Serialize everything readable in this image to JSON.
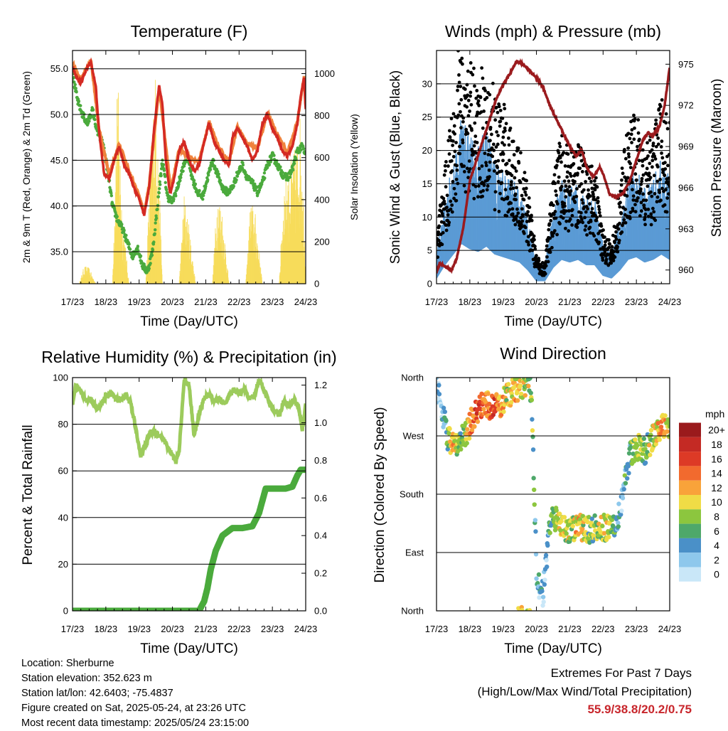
{
  "colors": {
    "temp_red": "#d42a23",
    "temp_orange": "#f0823c",
    "dewpoint_green": "#4aaa3c",
    "insolation_yellow": "#f7dc5a",
    "wind_blue": "#5b9bd5",
    "gust_black": "#000000",
    "pressure_maroon": "#9b1b1e",
    "rh_lightgreen": "#9ccb5c",
    "precip_green": "#4aaa3c",
    "extremes_red": "#c8262c"
  },
  "x_ticks": [
    "17/23",
    "18/23",
    "19/23",
    "20/23",
    "21/23",
    "22/23",
    "23/23",
    "24/23"
  ],
  "xlabel": "Time (Day/UTC)",
  "info": {
    "location": "Location: Sherburne",
    "elevation": "Station elevation: 352.623 m",
    "latlon": "Station lat/lon: 42.6403; -75.4837",
    "created": "Figure created on Sat, 2025-05-24, at 23:26 UTC",
    "recent": "Most recent data timestamp: 2025/05/24 23:15:00"
  },
  "extremes": {
    "title": "Extremes For Past 7 Days",
    "subtitle": "(High/Low/Max Wind/Total Precipitation)",
    "values": "55.9/38.8/20.2/0.75"
  },
  "chart_data": [
    {
      "type": "line",
      "title": "Temperature (F)",
      "xlabel": "Time (Day/UTC)",
      "ylabel": "2m & 9m T (Red, Orange) & 2m Td (Green)",
      "ylabel_right": "Solar Insolation (Yellow)",
      "x_unit": "days since 17/23 UTC",
      "ylim": [
        31.5,
        57.0
      ],
      "ylim_right": [
        0,
        1110
      ],
      "y_ticks": [
        "35.0",
        "40.0",
        "45.0",
        "50.0",
        "55.0"
      ],
      "y_ticks_right": [
        "0",
        "200",
        "400",
        "600",
        "800",
        "1000"
      ],
      "grid": true,
      "series": [
        {
          "name": "2m T",
          "color": "#d42a23",
          "x": [
            0,
            0.12,
            0.25,
            0.4,
            0.55,
            0.7,
            0.8,
            0.95,
            1.1,
            1.25,
            1.4,
            1.55,
            1.7,
            1.85,
            2.0,
            2.15,
            2.3,
            2.45,
            2.6,
            2.7,
            2.8,
            2.9,
            2.95,
            3.05,
            3.2,
            3.35,
            3.5,
            3.65,
            3.8,
            3.95,
            4.1,
            4.25,
            4.4,
            4.55,
            4.7,
            4.8,
            4.95,
            5.1,
            5.25,
            5.4,
            5.55,
            5.7,
            5.85,
            6.0,
            6.15,
            6.3,
            6.45,
            6.6,
            6.75,
            6.85,
            6.95,
            7.0
          ],
          "y": [
            55.2,
            54.0,
            53.5,
            54.8,
            55.8,
            53.0,
            48.0,
            43.5,
            43.0,
            45.0,
            46.5,
            44.5,
            43.5,
            42.0,
            40.8,
            39.0,
            42.0,
            48.5,
            53.2,
            51.0,
            45.0,
            42.0,
            41.5,
            43.0,
            46.0,
            47.0,
            45.0,
            43.8,
            44.5,
            47.0,
            49.0,
            47.0,
            46.0,
            45.0,
            44.5,
            47.5,
            48.5,
            47.5,
            46.5,
            45.0,
            46.0,
            49.0,
            50.0,
            48.5,
            47.5,
            46.0,
            45.5,
            46.5,
            49.0,
            52.0,
            54.0,
            50.5
          ]
        },
        {
          "name": "9m T",
          "color": "#f0823c",
          "x": [
            0,
            0.25,
            0.55,
            0.8,
            1.1,
            1.4,
            1.7,
            2.0,
            2.15,
            2.3,
            2.6,
            2.95,
            3.2,
            3.5,
            3.8,
            4.1,
            4.4,
            4.7,
            4.95,
            5.25,
            5.55,
            5.85,
            6.15,
            6.45,
            6.75,
            6.95,
            7.0
          ],
          "y": [
            55.6,
            53.8,
            56.0,
            48.3,
            43.4,
            46.8,
            43.8,
            41.1,
            39.3,
            42.3,
            53.0,
            41.8,
            46.2,
            45.3,
            44.8,
            49.2,
            46.3,
            44.8,
            48.7,
            46.8,
            46.3,
            50.2,
            47.8,
            45.8,
            49.2,
            54.2,
            50.8
          ]
        },
        {
          "name": "2m Td",
          "color": "#4aaa3c",
          "x": [
            0,
            0.15,
            0.3,
            0.45,
            0.6,
            0.75,
            0.9,
            1.05,
            1.2,
            1.35,
            1.5,
            1.65,
            1.8,
            1.95,
            2.1,
            2.25,
            2.4,
            2.55,
            2.7,
            2.85,
            3.0,
            3.15,
            3.3,
            3.45,
            3.6,
            3.75,
            3.9,
            4.05,
            4.2,
            4.35,
            4.5,
            4.65,
            4.8,
            4.95,
            5.1,
            5.25,
            5.4,
            5.55,
            5.7,
            5.85,
            6.0,
            6.15,
            6.3,
            6.45,
            6.6,
            6.75,
            6.9,
            7.0
          ],
          "y": [
            54.5,
            51.5,
            50.0,
            49.0,
            50.5,
            48.0,
            47.0,
            44.0,
            40.0,
            38.5,
            37.5,
            36.0,
            34.5,
            35.5,
            33.5,
            32.8,
            35.0,
            40.0,
            45.0,
            41.0,
            40.5,
            42.0,
            44.0,
            45.5,
            43.0,
            41.5,
            41.0,
            43.0,
            45.0,
            43.5,
            42.0,
            41.5,
            42.0,
            43.5,
            44.5,
            43.0,
            42.5,
            41.5,
            42.5,
            44.5,
            45.5,
            44.5,
            43.5,
            43.0,
            44.0,
            46.0,
            46.5,
            45.5
          ]
        },
        {
          "name": "Solar Insolation",
          "color": "#f7dc5a",
          "x": [
            0,
            0.2,
            0.35,
            0.5,
            0.7,
            0.85,
            1.0,
            1.2,
            1.35,
            1.5,
            1.7,
            1.85,
            2.0,
            2.2,
            2.35,
            2.5,
            2.7,
            2.85,
            3.0,
            3.2,
            3.35,
            3.5,
            3.7,
            3.85,
            4.0,
            4.2,
            4.35,
            4.5,
            4.7,
            4.85,
            5.0,
            5.2,
            5.35,
            5.5,
            5.7,
            5.85,
            6.0,
            6.2,
            6.35,
            6.5,
            6.7,
            6.85,
            7.0
          ],
          "y": [
            0,
            0,
            80,
            70,
            0,
            0,
            0,
            0,
            950,
            300,
            0,
            0,
            0,
            0,
            600,
            950,
            0,
            0,
            0,
            0,
            400,
            250,
            0,
            0,
            0,
            0,
            420,
            320,
            0,
            0,
            0,
            0,
            380,
            300,
            0,
            0,
            0,
            0,
            450,
            520,
            600,
            750,
            100
          ]
        }
      ]
    },
    {
      "type": "scatter",
      "title": "Winds (mph) & Pressure (mb)",
      "xlabel": "Time (Day/UTC)",
      "ylabel": "Sonic Wind & Gust (Blue, Black)",
      "ylabel_right": "Station Pressure (Maroon)",
      "x_unit": "days since 17/23 UTC",
      "ylim": [
        0,
        35
      ],
      "ylim_right": [
        959,
        976
      ],
      "y_ticks": [
        "0",
        "5",
        "10",
        "15",
        "20",
        "25",
        "30"
      ],
      "y_ticks_right": [
        "960",
        "963",
        "966",
        "969",
        "972",
        "975"
      ],
      "grid": true,
      "series": [
        {
          "name": "Gust",
          "color": "#000000",
          "x": [
            0,
            0.25,
            0.5,
            0.75,
            1.0,
            1.25,
            1.5,
            1.75,
            2.0,
            2.25,
            2.5,
            2.75,
            3.0,
            3.25,
            3.5,
            3.75,
            4.0,
            4.25,
            4.5,
            4.75,
            5.0,
            5.25,
            5.5,
            5.75,
            6.0,
            6.25,
            6.5,
            6.75,
            7.0
          ],
          "y": [
            5,
            12,
            20,
            27,
            23,
            22,
            24,
            20,
            19,
            16,
            14,
            10,
            3,
            2,
            11,
            16,
            14,
            15,
            13,
            12,
            6,
            4,
            10,
            17,
            18,
            14,
            16,
            20,
            17
          ]
        },
        {
          "name": "Wind",
          "color": "#5b9bd5",
          "x": [
            0,
            0.25,
            0.5,
            0.75,
            1.0,
            1.25,
            1.5,
            1.75,
            2.0,
            2.25,
            2.5,
            2.75,
            3.0,
            3.25,
            3.5,
            3.75,
            4.0,
            4.25,
            4.5,
            4.75,
            5.0,
            5.25,
            5.5,
            5.75,
            6.0,
            6.25,
            6.5,
            6.75,
            7.0
          ],
          "y": [
            2,
            7,
            11,
            15,
            13,
            12,
            14,
            11,
            10,
            9,
            8,
            5,
            1,
            1,
            6,
            9,
            8,
            9,
            7,
            7,
            3,
            2,
            5,
            9,
            10,
            8,
            9,
            11,
            9
          ]
        },
        {
          "name": "Station Pressure",
          "color": "#9b1b1e",
          "x": [
            0,
            0.1,
            0.3,
            0.45,
            0.6,
            0.8,
            1.0,
            1.2,
            1.4,
            1.6,
            1.8,
            2.0,
            2.2,
            2.4,
            2.6,
            2.8,
            3.0,
            3.2,
            3.4,
            3.6,
            3.8,
            4.0,
            4.2,
            4.35,
            4.5,
            4.7,
            4.9,
            5.0,
            5.2,
            5.4,
            5.6,
            5.8,
            6.0,
            6.2,
            6.35,
            6.5,
            6.7,
            6.85,
            7.0
          ],
          "y": [
            959.8,
            960.5,
            960.2,
            960.0,
            960.8,
            963.0,
            966.5,
            968.0,
            969.5,
            971.0,
            972.5,
            973.5,
            974.3,
            975.2,
            975.0,
            974.5,
            974.0,
            973.3,
            972.0,
            971.0,
            970.0,
            969.0,
            968.3,
            968.8,
            967.5,
            966.8,
            967.5,
            967.0,
            965.5,
            965.3,
            965.6,
            966.5,
            968.0,
            969.5,
            970.0,
            969.8,
            970.5,
            972.0,
            974.8
          ]
        }
      ]
    },
    {
      "type": "line",
      "title": "Relative Humidity (%) & Precipitation (in)",
      "xlabel": "Time (Day/UTC)",
      "ylabel": "Percent & Total Rainfall",
      "x_unit": "days since 17/23 UTC",
      "ylim": [
        0,
        100
      ],
      "ylim_right": [
        0,
        1.24
      ],
      "y_ticks": [
        "0",
        "20",
        "40",
        "60",
        "80",
        "100"
      ],
      "y_ticks_right": [
        "0.0",
        "0.2",
        "0.4",
        "0.6",
        "0.8",
        "1.0",
        "1.2"
      ],
      "grid": true,
      "series": [
        {
          "name": "Relative Humidity",
          "color": "#9ccb5c",
          "x": [
            0,
            0.1,
            0.25,
            0.4,
            0.55,
            0.7,
            0.85,
            1.0,
            1.15,
            1.3,
            1.45,
            1.6,
            1.75,
            1.9,
            2.05,
            2.2,
            2.35,
            2.5,
            2.65,
            2.8,
            2.95,
            3.1,
            3.2,
            3.35,
            3.5,
            3.65,
            3.8,
            3.95,
            4.1,
            4.25,
            4.4,
            4.55,
            4.7,
            4.85,
            5.0,
            5.15,
            5.3,
            5.45,
            5.6,
            5.75,
            5.9,
            6.05,
            6.2,
            6.35,
            6.5,
            6.65,
            6.8,
            6.9,
            7.0
          ],
          "y": [
            89,
            97,
            94,
            90,
            91,
            87,
            88,
            92,
            93,
            91,
            90,
            93,
            89,
            78,
            66,
            72,
            77,
            76,
            75,
            72,
            68,
            64,
            68,
            99,
            97,
            75,
            84,
            91,
            93,
            90,
            91,
            89,
            92,
            95,
            93,
            95,
            91,
            92,
            99,
            95,
            89,
            86,
            84,
            90,
            88,
            91,
            86,
            78,
            88
          ]
        },
        {
          "name": "Total Precipitation",
          "color": "#4aaa3c",
          "x": [
            0,
            1.0,
            2.0,
            3.0,
            3.8,
            3.95,
            4.05,
            4.15,
            4.3,
            4.5,
            4.8,
            5.1,
            5.4,
            5.6,
            5.8,
            6.1,
            6.4,
            6.6,
            6.75,
            6.85,
            7.0
          ],
          "y": [
            0,
            0,
            0,
            0,
            0,
            0.05,
            0.12,
            0.22,
            0.32,
            0.4,
            0.44,
            0.44,
            0.45,
            0.52,
            0.65,
            0.65,
            0.65,
            0.66,
            0.72,
            0.75,
            0.75
          ]
        }
      ]
    },
    {
      "type": "scatter",
      "title": "Wind Direction",
      "xlabel": "Time (Day/UTC)",
      "ylabel": "Direction (Colored By Speed)",
      "x_unit": "days since 17/23 UTC",
      "ylim": [
        0,
        360
      ],
      "y_ticks": [
        "North",
        "East",
        "South",
        "West",
        "North"
      ],
      "grid": true,
      "legend_title": "mph",
      "legend_labels": [
        "0",
        "2",
        "4",
        "6",
        "8",
        "10",
        "12",
        "14",
        "16",
        "18",
        "20+"
      ],
      "legend_colors": [
        "#c9e7f8",
        "#8ec8ec",
        "#4a90c8",
        "#4ea86a",
        "#8cc63e",
        "#f0dc46",
        "#f9a33a",
        "#f26a2e",
        "#dd3a26",
        "#c42a24",
        "#9a1a1c"
      ],
      "legend_placement": "right",
      "series": [
        {
          "name": "Direction",
          "x": [
            0.05,
            0.2,
            0.35,
            0.5,
            0.7,
            0.9,
            1.1,
            1.3,
            1.5,
            1.7,
            1.9,
            2.1,
            2.3,
            2.5,
            2.7,
            2.85,
            3.0,
            3.1,
            3.2,
            3.3,
            3.45,
            3.6,
            3.8,
            4.0,
            4.2,
            4.4,
            4.6,
            4.8,
            5.0,
            5.2,
            5.35,
            5.5,
            5.65,
            5.8,
            5.95,
            6.1,
            6.25,
            6.4,
            6.55,
            6.7,
            6.85,
            7.0
          ],
          "y": [
            340,
            300,
            265,
            255,
            260,
            275,
            300,
            315,
            318,
            315,
            318,
            330,
            340,
            345,
            350,
            340,
            60,
            30,
            25,
            80,
            150,
            140,
            130,
            125,
            130,
            128,
            125,
            130,
            128,
            130,
            135,
            150,
            200,
            240,
            250,
            255,
            245,
            260,
            270,
            275,
            290,
            280
          ],
          "speed": [
            3,
            2,
            8,
            12,
            6,
            10,
            14,
            15,
            13,
            16,
            12,
            9,
            11,
            10,
            9,
            8,
            4,
            3,
            2,
            2,
            7,
            9,
            10,
            8,
            11,
            9,
            7,
            8,
            9,
            10,
            6,
            3,
            4,
            5,
            7,
            8,
            6,
            9,
            10,
            11,
            12,
            10
          ]
        }
      ]
    }
  ]
}
